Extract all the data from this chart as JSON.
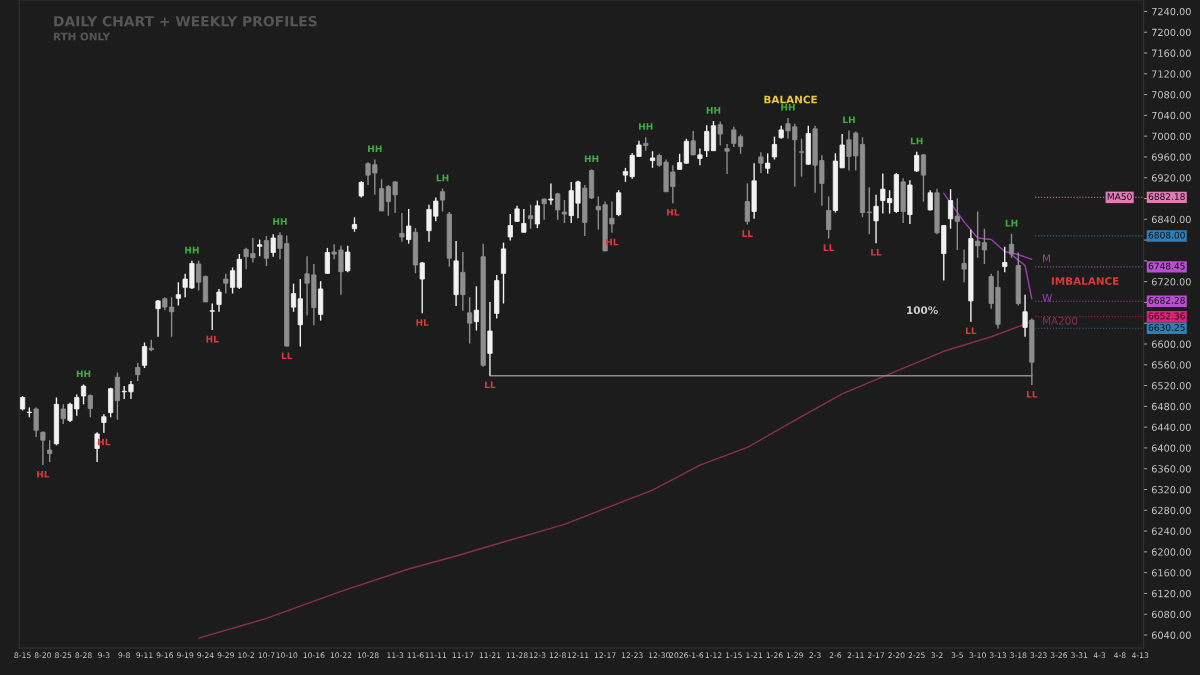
{
  "chart_data": {
    "type": "candlestick",
    "title": "DAILY CHART + WEEKLY PROFILES",
    "subtitle": "RTH ONLY",
    "categories": [
      "8-15",
      null,
      null,
      "8-20",
      null,
      null,
      "8-25",
      null,
      null,
      "8-28",
      null,
      null,
      "9-3",
      null,
      null,
      "9-8",
      null,
      null,
      "9-11",
      null,
      null,
      "9-16",
      null,
      null,
      "9-19",
      null,
      null,
      "9-24",
      null,
      null,
      "9-29",
      null,
      null,
      "10-2",
      null,
      null,
      "10-7",
      null,
      null,
      "10-10",
      null,
      null,
      null,
      "10-16",
      null,
      null,
      null,
      "10-22",
      null,
      null,
      null,
      "10-28",
      null,
      null,
      null,
      "11-3",
      null,
      null,
      "11-6",
      null,
      null,
      "11-11",
      null,
      null,
      null,
      "11-17",
      null,
      null,
      null,
      "11-21",
      null,
      null,
      null,
      "11-28",
      null,
      null,
      "12-3",
      null,
      null,
      "12-8",
      null,
      null,
      "12-11",
      null,
      null,
      null,
      "12-17",
      null,
      null,
      null,
      "12-23",
      null,
      null,
      null,
      "12-30",
      null,
      null,
      null,
      "2026-1-6",
      null,
      null,
      null,
      "1-12",
      null,
      null,
      "1-15",
      null,
      null,
      "1-21",
      null,
      null,
      "1-26",
      null,
      null,
      "1-29",
      null,
      null,
      "2-3",
      null,
      null,
      "2-6",
      null,
      null,
      "2-11",
      null,
      null,
      "2-17",
      null,
      null,
      "2-20",
      null,
      null,
      "2-25",
      null,
      null,
      "3-2",
      null,
      null,
      "3-5",
      null,
      null,
      "3-10",
      null,
      null,
      "3-13",
      null,
      null,
      "3-18",
      null,
      null,
      "3-23",
      null,
      null,
      "3-26",
      null,
      null,
      "3-31",
      null,
      null,
      "4-3",
      null,
      null,
      "4-8",
      null,
      null,
      "4-13"
    ],
    "ohlc": [
      [
        6475,
        6500,
        6472,
        6497
      ],
      [
        6468,
        6478,
        6459,
        6469
      ],
      [
        6475,
        6478,
        6421,
        6434
      ],
      [
        6430,
        6432,
        6367,
        6415
      ],
      [
        6396,
        6415,
        6373,
        6389
      ],
      [
        6408,
        6497,
        6405,
        6484
      ],
      [
        6475,
        6484,
        6446,
        6456
      ],
      [
        6453,
        6487,
        6450,
        6484
      ],
      [
        6475,
        6503,
        6462,
        6497
      ],
      [
        6500,
        6522,
        6484,
        6519
      ],
      [
        6501,
        6503,
        6459,
        6476
      ],
      [
        6399,
        6430,
        6373,
        6427
      ],
      [
        6449,
        6465,
        6429,
        6460
      ],
      [
        6468,
        6516,
        6459,
        6514
      ],
      [
        6536,
        6545,
        6454,
        6491
      ],
      [
        6508,
        6519,
        6494,
        6509
      ],
      [
        6508,
        6529,
        6494,
        6522
      ],
      [
        6555,
        6564,
        6529,
        6541
      ],
      [
        6559,
        6603,
        6554,
        6595
      ],
      [
        6592,
        6608,
        6586,
        6589
      ],
      [
        6668,
        6684,
        6614,
        6683
      ],
      [
        6687,
        6690,
        6665,
        6671
      ],
      [
        6671,
        6690,
        6614,
        6662
      ],
      [
        6688,
        6719,
        6674,
        6695
      ],
      [
        6709,
        6735,
        6690,
        6725
      ],
      [
        6708,
        6760,
        6706,
        6755
      ],
      [
        6754,
        6760,
        6703,
        6719
      ],
      [
        6730,
        6732,
        6681,
        6681
      ],
      [
        6663,
        6678,
        6627,
        6664
      ],
      [
        6676,
        6706,
        6662,
        6700
      ],
      [
        6725,
        6735,
        6697,
        6717
      ],
      [
        6709,
        6747,
        6697,
        6741
      ],
      [
        6709,
        6773,
        6706,
        6763
      ],
      [
        6782,
        6785,
        6744,
        6768
      ],
      [
        6774,
        6804,
        6757,
        6766
      ],
      [
        6788,
        6801,
        6769,
        6791
      ],
      [
        6799,
        6808,
        6750,
        6765
      ],
      [
        6776,
        6811,
        6768,
        6804
      ],
      [
        6809,
        6815,
        6763,
        6784
      ],
      [
        6793,
        6809,
        6595,
        6596
      ],
      [
        6671,
        6716,
        6662,
        6697
      ],
      [
        6637,
        6725,
        6595,
        6687
      ],
      [
        6735,
        6769,
        6655,
        6717
      ],
      [
        6733,
        6754,
        6636,
        6670
      ],
      [
        6657,
        6721,
        6645,
        6706
      ],
      [
        6736,
        6785,
        6735,
        6776
      ],
      [
        6777,
        6792,
        6763,
        6773
      ],
      [
        6781,
        6789,
        6695,
        6739
      ],
      [
        6741,
        6789,
        6738,
        6777
      ],
      [
        6822,
        6844,
        6816,
        6830
      ],
      [
        6885,
        6913,
        6882,
        6911
      ],
      [
        6947,
        6950,
        6906,
        6925
      ],
      [
        6945,
        6955,
        6887,
        6929
      ],
      [
        6899,
        6917,
        6856,
        6856
      ],
      [
        6903,
        6906,
        6847,
        6874
      ],
      [
        6912,
        6913,
        6852,
        6887
      ],
      [
        6813,
        6852,
        6797,
        6806
      ],
      [
        6801,
        6860,
        6793,
        6827
      ],
      [
        6815,
        6823,
        6736,
        6752
      ],
      [
        6725,
        6758,
        6659,
        6756
      ],
      [
        6818,
        6868,
        6797,
        6859
      ],
      [
        6846,
        6882,
        6836,
        6875
      ],
      [
        6893,
        6899,
        6855,
        6877
      ],
      [
        6850,
        6854,
        6749,
        6765
      ],
      [
        6695,
        6798,
        6673,
        6760
      ],
      [
        6738,
        6777,
        6664,
        6695
      ],
      [
        6660,
        6690,
        6601,
        6640
      ],
      [
        6643,
        6711,
        6626,
        6665
      ],
      [
        6768,
        6793,
        6556,
        6559
      ],
      [
        6582,
        6681,
        6539,
        6625
      ],
      [
        6659,
        6733,
        6649,
        6722
      ],
      [
        6736,
        6795,
        6678,
        6783
      ],
      [
        6806,
        6850,
        6799,
        6828
      ],
      [
        6836,
        6866,
        6835,
        6860
      ],
      [
        6815,
        6860,
        6815,
        6832
      ],
      [
        6847,
        6868,
        6822,
        6841
      ],
      [
        6831,
        6876,
        6823,
        6866
      ],
      [
        6879,
        6880,
        6839,
        6870
      ],
      [
        6877,
        6909,
        6868,
        6879
      ],
      [
        6889,
        6891,
        6839,
        6858
      ],
      [
        6854,
        6877,
        6833,
        6850
      ],
      [
        6847,
        6912,
        6833,
        6895
      ],
      [
        6871,
        6914,
        6842,
        6912
      ],
      [
        6900,
        6906,
        6808,
        6834
      ],
      [
        6934,
        6936,
        6879,
        6881
      ],
      [
        6865,
        6884,
        6820,
        6858
      ],
      [
        6868,
        6874,
        6779,
        6779
      ],
      [
        6842,
        6874,
        6814,
        6831
      ],
      [
        6849,
        6896,
        6846,
        6891
      ],
      [
        6925,
        6939,
        6912,
        6932
      ],
      [
        6922,
        6967,
        6918,
        6963
      ],
      [
        6961,
        6991,
        6960,
        6983
      ],
      [
        6986,
        6998,
        6972,
        6982
      ],
      [
        6953,
        6971,
        6939,
        6958
      ],
      [
        6963,
        6966,
        6941,
        6944
      ],
      [
        6950,
        6955,
        6893,
        6893
      ],
      [
        6931,
        6944,
        6871,
        6903
      ],
      [
        6936,
        6966,
        6936,
        6949
      ],
      [
        6948,
        6995,
        6947,
        6990
      ],
      [
        6991,
        7010,
        6963,
        6964
      ],
      [
        6957,
        6976,
        6944,
        6964
      ],
      [
        6972,
        7021,
        6960,
        7009
      ],
      [
        6972,
        7029,
        6972,
        7020
      ],
      [
        7022,
        7028,
        6982,
        7004
      ],
      [
        6976,
        6985,
        6927,
        6971
      ],
      [
        7012,
        7018,
        6979,
        6986
      ],
      [
        6999,
        7003,
        6966,
        6980
      ],
      [
        6874,
        6909,
        6830,
        6836
      ],
      [
        6855,
        6948,
        6841,
        6914
      ],
      [
        6960,
        6969,
        6929,
        6948
      ],
      [
        6938,
        6967,
        6928,
        6948
      ],
      [
        6960,
        6999,
        6955,
        6984
      ],
      [
        6997,
        7020,
        6995,
        7012
      ],
      [
        7024,
        7035,
        6995,
        7010
      ],
      [
        7018,
        7024,
        6903,
        6993
      ],
      [
        6970,
        6995,
        6922,
        6969
      ],
      [
        6946,
        7020,
        6945,
        7005
      ],
      [
        7014,
        7020,
        6891,
        6944
      ],
      [
        6953,
        6963,
        6866,
        6909
      ],
      [
        6857,
        6884,
        6803,
        6820
      ],
      [
        6857,
        6967,
        6853,
        6952
      ],
      [
        6939,
        7004,
        6939,
        6983
      ],
      [
        6993,
        7011,
        6934,
        6961
      ],
      [
        7006,
        7009,
        6934,
        6962
      ],
      [
        6984,
        6998,
        6844,
        6853
      ],
      [
        6854,
        6901,
        6811,
        6853
      ],
      [
        6837,
        6887,
        6794,
        6865
      ],
      [
        6876,
        6928,
        6851,
        6898
      ],
      [
        6872,
        6896,
        6851,
        6880
      ],
      [
        6855,
        6929,
        6852,
        6926
      ],
      [
        6912,
        6919,
        6833,
        6855
      ],
      [
        6849,
        6915,
        6831,
        6906
      ],
      [
        6933,
        6970,
        6931,
        6963
      ],
      [
        6964,
        6966,
        6874,
        6925
      ],
      [
        6858,
        6896,
        6857,
        6891
      ],
      [
        6891,
        6899,
        6811,
        6814
      ],
      [
        6774,
        6829,
        6722,
        6828
      ],
      [
        6841,
        6898,
        6822,
        6876
      ],
      [
        6846,
        6880,
        6781,
        6836
      ],
      [
        6755,
        6782,
        6719,
        6744
      ],
      [
        6683,
        6820,
        6643,
        6803
      ],
      [
        6798,
        6855,
        6766,
        6789
      ],
      [
        6795,
        6822,
        6754,
        6781
      ],
      [
        6730,
        6735,
        6668,
        6678
      ],
      [
        6709,
        6741,
        6630,
        6638
      ],
      [
        6749,
        6787,
        6738,
        6757
      ],
      [
        6792,
        6812,
        6766,
        6773
      ],
      [
        6751,
        6776,
        6674,
        6678
      ],
      [
        6632,
        6695,
        6614,
        6662
      ],
      [
        6646,
        6649,
        6521,
        6565
      ],
      null,
      null,
      null,
      null,
      null,
      null,
      null,
      null,
      null,
      null,
      null,
      null,
      null,
      null,
      null,
      null
    ],
    "colors": [
      "#f2f2f2",
      "#f2f2f2",
      "#8e8e8e",
      "#8e8e8e",
      "#8e8e8e",
      "#f2f2f2",
      "#8e8e8e",
      "#f2f2f2",
      "#f2f2f2",
      "#f2f2f2",
      "#8e8e8e",
      "#f2f2f2",
      "#f2f2f2",
      "#f2f2f2",
      "#8e8e8e",
      "#f2f2f2",
      "#f2f2f2",
      "#8e8e8e",
      "#f2f2f2",
      "#8e8e8e",
      "#f2f2f2",
      "#8e8e8e",
      "#8e8e8e",
      "#f2f2f2",
      "#f2f2f2",
      "#f2f2f2",
      "#8e8e8e",
      "#8e8e8e",
      "#f2f2f2",
      "#f2f2f2",
      "#8e8e8e",
      "#f2f2f2",
      "#f2f2f2",
      "#8e8e8e",
      "#8e8e8e",
      "#f2f2f2",
      "#8e8e8e",
      "#f2f2f2",
      "#8e8e8e",
      "#8e8e8e",
      "#f2f2f2",
      "#f2f2f2",
      "#8e8e8e",
      "#8e8e8e",
      "#f2f2f2",
      "#f2f2f2",
      "#8e8e8e",
      "#8e8e8e",
      "#f2f2f2",
      "#f2f2f2",
      "#f2f2f2",
      "#8e8e8e",
      "#8e8e8e",
      "#8e8e8e",
      "#8e8e8e",
      "#8e8e8e",
      "#8e8e8e",
      "#f2f2f2",
      "#8e8e8e",
      "#f2f2f2",
      "#f2f2f2",
      "#f2f2f2",
      "#8e8e8e",
      "#8e8e8e",
      "#f2f2f2",
      "#8e8e8e",
      "#8e8e8e",
      "#f2f2f2",
      "#8e8e8e",
      "#f2f2f2",
      "#f2f2f2",
      "#f2f2f2",
      "#f2f2f2",
      "#f2f2f2",
      "#f2f2f2",
      "#8e8e8e",
      "#f2f2f2",
      "#8e8e8e",
      "#f2f2f2",
      "#8e8e8e",
      "#8e8e8e",
      "#f2f2f2",
      "#f2f2f2",
      "#8e8e8e",
      "#8e8e8e",
      "#8e8e8e",
      "#8e8e8e",
      "#8e8e8e",
      "#f2f2f2",
      "#f2f2f2",
      "#f2f2f2",
      "#f2f2f2",
      "#8e8e8e",
      "#f2f2f2",
      "#8e8e8e",
      "#8e8e8e",
      "#8e8e8e",
      "#f2f2f2",
      "#f2f2f2",
      "#8e8e8e",
      "#f2f2f2",
      "#f2f2f2",
      "#f2f2f2",
      "#8e8e8e",
      "#8e8e8e",
      "#8e8e8e",
      "#8e8e8e",
      "#8e8e8e",
      "#f2f2f2",
      "#8e8e8e",
      "#f2f2f2",
      "#f2f2f2",
      "#f2f2f2",
      "#8e8e8e",
      "#8e8e8e",
      "#8e8e8e",
      "#f2f2f2",
      "#8e8e8e",
      "#8e8e8e",
      "#8e8e8e",
      "#f2f2f2",
      "#f2f2f2",
      "#8e8e8e",
      "#8e8e8e",
      "#8e8e8e",
      "#8e8e8e",
      "#f2f2f2",
      "#f2f2f2",
      "#f2f2f2",
      "#f2f2f2",
      "#8e8e8e",
      "#f2f2f2",
      "#f2f2f2",
      "#8e8e8e",
      "#f2f2f2",
      "#8e8e8e",
      "#f2f2f2",
      "#f2f2f2",
      "#8e8e8e",
      "#8e8e8e",
      "#f2f2f2",
      "#8e8e8e",
      "#8e8e8e",
      "#8e8e8e",
      "#8e8e8e",
      "#f2f2f2",
      "#8e8e8e",
      "#8e8e8e",
      "#f2f2f2",
      "#8e8e8e",
      null,
      null,
      null,
      null,
      null,
      null,
      null,
      null,
      null,
      null,
      null,
      null,
      null,
      null,
      null,
      null
    ],
    "series": [
      {
        "type": "line",
        "name": "MA200",
        "color": "#8a2f52",
        "values": [
          null,
          null,
          null,
          null,
          null,
          null,
          null,
          null,
          null,
          null,
          null,
          null,
          null,
          null,
          null,
          null,
          null,
          null,
          null,
          null,
          null,
          null,
          null,
          null,
          null,
          null,
          6034,
          null,
          null,
          null,
          null,
          null,
          null,
          null,
          null,
          null,
          6072,
          null,
          null,
          null,
          null,
          null,
          null,
          null,
          null,
          null,
          null,
          6124,
          null,
          null,
          null,
          null,
          null,
          null,
          null,
          null,
          null,
          6167,
          null,
          null,
          null,
          null,
          null,
          null,
          6192,
          null,
          null,
          null,
          null,
          null,
          null,
          6219,
          null,
          null,
          null,
          null,
          null,
          null,
          null,
          null,
          6253,
          null,
          null,
          null,
          null,
          null,
          null,
          null,
          null,
          null,
          null,
          null,
          null,
          6319,
          null,
          null,
          null,
          null,
          null,
          null,
          6367,
          null,
          null,
          null,
          null,
          null,
          null,
          6401,
          null,
          null,
          null,
          null,
          null,
          null,
          6453,
          null,
          null,
          null,
          null,
          null,
          null,
          6504,
          null,
          null,
          null,
          null,
          null,
          null,
          null,
          6548,
          null,
          null,
          null,
          null,
          null,
          null,
          6586,
          null,
          null,
          null,
          null,
          null,
          null,
          6614,
          null,
          null,
          null,
          null,
          null,
          6643,
          null,
          null,
          null,
          null,
          null,
          null,
          null,
          null,
          null,
          null,
          null,
          null,
          null,
          null,
          null,
          null
        ]
      },
      {
        "type": "line",
        "name": "M",
        "color": "#9b3fb5",
        "values": [
          null,
          null,
          null,
          null,
          null,
          null,
          null,
          null,
          null,
          null,
          null,
          null,
          null,
          null,
          null,
          null,
          null,
          null,
          null,
          null,
          null,
          null,
          null,
          null,
          null,
          null,
          null,
          null,
          null,
          null,
          null,
          null,
          null,
          null,
          null,
          null,
          null,
          null,
          null,
          null,
          null,
          null,
          null,
          null,
          null,
          null,
          null,
          null,
          null,
          null,
          null,
          null,
          null,
          null,
          null,
          null,
          null,
          null,
          null,
          null,
          null,
          null,
          null,
          null,
          null,
          null,
          null,
          null,
          null,
          null,
          null,
          null,
          null,
          null,
          null,
          null,
          null,
          null,
          null,
          null,
          null,
          null,
          null,
          null,
          null,
          null,
          null,
          null,
          null,
          null,
          null,
          null,
          null,
          null,
          null,
          null,
          null,
          null,
          null,
          null,
          null,
          null,
          null,
          null,
          null,
          null,
          null,
          null,
          null,
          null,
          null,
          null,
          null,
          null,
          null,
          null,
          null,
          null,
          null,
          null,
          null,
          null,
          null,
          null,
          null,
          null,
          null,
          null,
          null,
          null,
          null,
          null,
          null,
          null,
          null,
          null,
          6890,
          null,
          null,
          6835,
          null,
          6804,
          null,
          6801,
          null,
          6778,
          null,
          6772,
          null,
          6763,
          null,
          null,
          null,
          null,
          null,
          null,
          null,
          null,
          null,
          null,
          null,
          null,
          null,
          null,
          null,
          null
        ]
      },
      {
        "type": "line",
        "name": "W",
        "color": "#9b3fb5",
        "values": [
          null,
          null,
          null,
          null,
          null,
          null,
          null,
          null,
          null,
          null,
          null,
          null,
          null,
          null,
          null,
          null,
          null,
          null,
          null,
          null,
          null,
          null,
          null,
          null,
          null,
          null,
          null,
          null,
          null,
          null,
          null,
          null,
          null,
          null,
          null,
          null,
          null,
          null,
          null,
          null,
          null,
          null,
          null,
          null,
          null,
          null,
          null,
          null,
          null,
          null,
          null,
          null,
          null,
          null,
          null,
          null,
          null,
          null,
          null,
          null,
          null,
          null,
          null,
          null,
          null,
          null,
          null,
          null,
          null,
          null,
          null,
          null,
          null,
          null,
          null,
          null,
          null,
          null,
          null,
          null,
          null,
          null,
          null,
          null,
          null,
          null,
          null,
          null,
          null,
          null,
          null,
          null,
          null,
          null,
          null,
          null,
          null,
          null,
          null,
          null,
          null,
          null,
          null,
          null,
          null,
          null,
          null,
          null,
          null,
          null,
          null,
          null,
          null,
          null,
          null,
          null,
          null,
          null,
          null,
          null,
          null,
          null,
          null,
          null,
          null,
          null,
          null,
          null,
          null,
          null,
          null,
          null,
          null,
          null,
          null,
          null,
          null,
          null,
          null,
          null,
          null,
          null,
          null,
          null,
          null,
          null,
          6772,
          null,
          6751,
          6687,
          null,
          null,
          null,
          null,
          null,
          null,
          null,
          null,
          null,
          null,
          null,
          null,
          null,
          null,
          null,
          null
        ]
      },
      {
        "type": "line",
        "color": "#8a8a8a",
        "values": [
          null,
          null,
          null,
          null,
          null,
          null,
          null,
          null,
          null,
          null,
          null,
          null,
          null,
          null,
          null,
          null,
          null,
          null,
          null,
          null,
          null,
          null,
          null,
          null,
          null,
          null,
          null,
          null,
          null,
          null,
          null,
          null,
          null,
          null,
          null,
          null,
          null,
          null,
          null,
          null,
          null,
          null,
          null,
          null,
          null,
          null,
          null,
          null,
          null,
          null,
          null,
          null,
          null,
          null,
          null,
          null,
          null,
          null,
          null,
          null,
          null,
          null,
          null,
          null,
          null,
          null,
          null,
          null,
          null,
          6539,
          null,
          null,
          null,
          null,
          null,
          null,
          null,
          null,
          null,
          null,
          null,
          null,
          null,
          null,
          null,
          null,
          null,
          null,
          null,
          null,
          null,
          null,
          null,
          null,
          null,
          null,
          null,
          null,
          null,
          null,
          null,
          null,
          null,
          null,
          null,
          null,
          null,
          null,
          null,
          null,
          null,
          null,
          null,
          null,
          null,
          null,
          null,
          null,
          null,
          null,
          null,
          null,
          null,
          null,
          null,
          null,
          null,
          null,
          null,
          null,
          null,
          null,
          null,
          null,
          null,
          null,
          null,
          null,
          null,
          null,
          null,
          null,
          null,
          null,
          null,
          null,
          null,
          null,
          null,
          6539,
          null,
          null,
          null,
          null,
          null,
          null,
          null,
          null,
          null,
          null,
          null,
          null,
          null,
          null,
          null,
          null
        ]
      }
    ],
    "annotations": [
      {
        "text": "HL",
        "y": 6367
      },
      {
        "text": "HH",
        "y": 6522
      },
      {
        "text": "HL",
        "y": 6429
      },
      {
        "text": "HH",
        "y": 6760
      },
      {
        "text": "HL",
        "y": 6627
      },
      {
        "text": "HH",
        "y": 6815
      },
      {
        "text": "LL",
        "y": 6595
      },
      {
        "text": "HH",
        "y": 6955
      },
      {
        "text": "HL",
        "y": 6659
      },
      {
        "text": "LH",
        "y": 6899
      },
      {
        "text": "LL",
        "y": 6539
      },
      {
        "text": "HH",
        "y": 6936
      },
      {
        "text": "HL",
        "y": 6814
      },
      {
        "text": "HH",
        "y": 6998
      },
      {
        "text": "HL",
        "y": 6871
      },
      {
        "text": "HH",
        "y": 7029
      },
      {
        "text": "LL",
        "y": 6830
      },
      {
        "text": "HH",
        "y": 7035
      },
      {
        "text": "LL",
        "y": 6803
      },
      {
        "text": "LH",
        "y": 7011
      },
      {
        "text": "LL",
        "y": 6794
      },
      {
        "text": "LH",
        "y": 6970
      },
      {
        "text": "LL",
        "y": 6643
      },
      {
        "text": "LH",
        "y": 6812
      },
      {
        "text": "LL",
        "y": 6521
      },
      "BALANCE",
      "IMBALANCE",
      "100%",
      {
        "text": "MA50",
        "y": 6882.18
      }
    ],
    "ref_lines": [
      {
        "axis": "y",
        "value": 6882.18,
        "label": "6882.18",
        "color": "#e07bb5",
        "line_style": "dotted"
      },
      {
        "axis": "y",
        "value": 6808.0,
        "label": "6808.00",
        "color": "#2d7fb8",
        "line_style": "dotted"
      },
      {
        "axis": "y",
        "value": 6748.45,
        "label": "6748.45",
        "color": "#b84fd0",
        "line_style": "dotted"
      },
      {
        "axis": "y",
        "value": 6682.28,
        "label": "6682.28",
        "color": "#b84fd0",
        "line_style": "dotted"
      },
      {
        "axis": "y",
        "value": 6652.36,
        "label": "6652.36",
        "color": "#e0207a",
        "line_style": "dotted"
      },
      {
        "axis": "y",
        "value": 6630.25,
        "label": "6630.25",
        "color": "#2d7fb8",
        "line_style": "dotted"
      }
    ],
    "ylim": [
      6015,
      7262
    ],
    "yticks": [
      {
        "value": 6040,
        "label": "6040.00"
      },
      {
        "value": 6080,
        "label": "6080.00"
      },
      {
        "value": 6120,
        "label": "6120.00"
      },
      {
        "value": 6160,
        "label": "6160.00"
      },
      {
        "value": 6200,
        "label": "6200.00"
      },
      {
        "value": 6240,
        "label": "6240.00"
      },
      {
        "value": 6280,
        "label": "6280.00"
      },
      {
        "value": 6320,
        "label": "6320.00"
      },
      {
        "value": 6360,
        "label": "6360.00"
      },
      {
        "value": 6400,
        "label": "6400.00"
      },
      {
        "value": 6440,
        "label": "6440.00"
      },
      {
        "value": 6480,
        "label": "6480.00"
      },
      {
        "value": 6520,
        "label": "6520.00"
      },
      {
        "value": 6560,
        "label": "6560.00"
      },
      {
        "value": 6600,
        "label": "6600.00"
      },
      {
        "value": 6640,
        "label": null
      },
      {
        "value": 6680,
        "label": null
      },
      {
        "value": 6720,
        "label": "6720.00"
      },
      {
        "value": 6760,
        "label": null
      },
      {
        "value": 6800,
        "label": null
      },
      {
        "value": 6840,
        "label": "6840.00"
      },
      {
        "value": 6880,
        "label": null
      },
      {
        "value": 6920,
        "label": "6920.00"
      },
      {
        "value": 6960,
        "label": "6960.00"
      },
      {
        "value": 7000,
        "label": "7000.00"
      },
      {
        "value": 7040,
        "label": "7040.00"
      },
      {
        "value": 7080,
        "label": "7080.00"
      },
      {
        "value": 7120,
        "label": "7120.00"
      },
      {
        "value": 7160,
        "label": "7160.00"
      },
      {
        "value": 7200,
        "label": "7200.00"
      },
      {
        "value": 7240,
        "label": "7240.00"
      }
    ],
    "grid": false
  }
}
